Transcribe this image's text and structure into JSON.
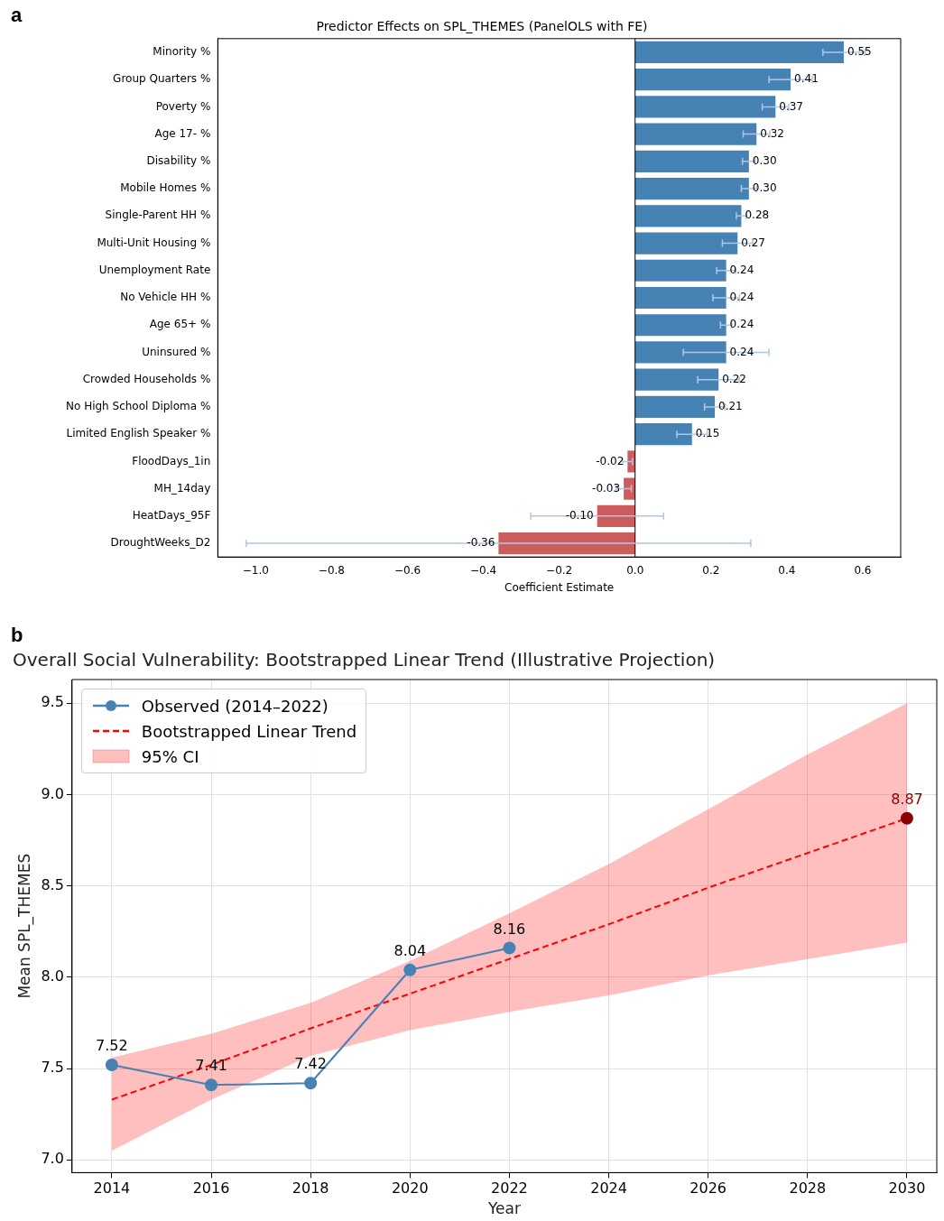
{
  "chart_data": [
    {
      "type": "bar",
      "orientation": "horizontal",
      "title": "Predictor Effects on SPL_THEMES (PanelOLS with FE)",
      "xlabel": "Coefficient Estimate",
      "annotations": [
        "a"
      ],
      "categories": [
        "Minority %",
        "Group Quarters %",
        "Poverty %",
        "Age 17- %",
        "Disability %",
        "Mobile Homes %",
        "Single-Parent HH %",
        "Multi-Unit Housing %",
        "Unemployment Rate",
        "No Vehicle HH %",
        "Age 65+ %",
        "Uninsured %",
        "Crowded Households %",
        "No High School Diploma %",
        "Limited English Speaker %",
        "FloodDays_1in",
        "MH_14day",
        "HeatDays_95F",
        "DroughtWeeks_D2"
      ],
      "values": [
        0.55,
        0.41,
        0.37,
        0.32,
        0.3,
        0.3,
        0.28,
        0.27,
        0.24,
        0.24,
        0.24,
        0.24,
        0.22,
        0.21,
        0.15,
        -0.02,
        -0.03,
        -0.1,
        -0.36
      ],
      "value_labels": [
        "0.55",
        "0.41",
        "0.37",
        "0.32",
        "0.30",
        "0.30",
        "0.28",
        "0.27",
        "0.24",
        "0.24",
        "0.24",
        "0.24",
        "0.22",
        "0.21",
        "0.15",
        "-0.02",
        "-0.03",
        "-0.10",
        "-0.36"
      ],
      "errors": [
        0.055,
        0.057,
        0.035,
        0.035,
        0.017,
        0.02,
        0.013,
        0.04,
        0.025,
        0.035,
        0.015,
        0.113,
        0.055,
        0.027,
        0.04,
        0.013,
        0.02,
        0.175,
        0.665
      ],
      "colors": [
        "#4682b4",
        "#4682b4",
        "#4682b4",
        "#4682b4",
        "#4682b4",
        "#4682b4",
        "#4682b4",
        "#4682b4",
        "#4682b4",
        "#4682b4",
        "#4682b4",
        "#4682b4",
        "#4682b4",
        "#4682b4",
        "#4682b4",
        "#cd5c5c",
        "#cd5c5c",
        "#cd5c5c",
        "#cd5c5c"
      ],
      "xlim": [
        -1.1,
        0.7
      ],
      "xticks": [
        {
          "value": -1.0,
          "label": "−1.0"
        },
        {
          "value": -0.8,
          "label": "−0.8"
        },
        {
          "value": -0.6,
          "label": "−0.6"
        },
        {
          "value": -0.4,
          "label": "−0.4"
        },
        {
          "value": -0.2,
          "label": "−0.2"
        },
        {
          "value": 0,
          "label": "0.0"
        },
        {
          "value": 0.2,
          "label": "0.2"
        },
        {
          "value": 0.4,
          "label": "0.4"
        },
        {
          "value": 0.6,
          "label": "0.6"
        }
      ],
      "ref_lines": [
        {
          "axis": "x",
          "value": 0,
          "color": "#000000"
        }
      ],
      "grid": false,
      "legend": false
    },
    {
      "type": "line",
      "title": "Overall Social Vulnerability: Bootstrapped Linear Trend (Illustrative Projection)",
      "xlabel": "Year",
      "ylabel": "Mean SPL_THEMES",
      "annotations": [
        "b",
        "95% CI"
      ],
      "series": [
        {
          "name": "Observed (2014–2022)",
          "type": "line",
          "color": "#4682b4",
          "marker": "circle",
          "line_style": "solid",
          "x": [
            2014,
            2016,
            2018,
            2020,
            2022
          ],
          "values": [
            7.52,
            7.41,
            7.42,
            8.04,
            8.16
          ],
          "value_labels": [
            "7.52",
            "7.41",
            "7.42",
            "8.04",
            "8.16"
          ]
        },
        {
          "name": "Bootstrapped Linear Trend",
          "type": "line",
          "color": "#ff0000",
          "marker": "none",
          "line_style": "dashed",
          "x": [
            2014,
            2016,
            2018,
            2020,
            2022,
            2024,
            2026,
            2028,
            2030
          ],
          "values": [
            7.33,
            7.52,
            7.72,
            7.91,
            8.1,
            8.29,
            8.49,
            8.68,
            8.87
          ],
          "lower": [
            7.05,
            7.33,
            7.57,
            7.71,
            7.81,
            7.9,
            8.01,
            8.1,
            8.19
          ],
          "upper": [
            7.56,
            7.69,
            7.86,
            8.09,
            8.35,
            8.62,
            8.92,
            9.22,
            9.5
          ]
        },
        {
          "type": "scatter",
          "color": "#8b0000",
          "marker": "circle",
          "x": [
            2030
          ],
          "values": [
            8.87
          ],
          "value_labels": [
            "8.87"
          ]
        }
      ],
      "xlim": [
        2013.2,
        2030.6
      ],
      "ylim": [
        6.93,
        9.63
      ],
      "xticks": [
        2014,
        2016,
        2018,
        2020,
        2022,
        2024,
        2026,
        2028,
        2030
      ],
      "yticks": [
        {
          "value": 7.0,
          "label": "7.0"
        },
        {
          "value": 7.5,
          "label": "7.5"
        },
        {
          "value": 8.0,
          "label": "8.0"
        },
        {
          "value": 8.5,
          "label": "8.5"
        },
        {
          "value": 9.0,
          "label": "9.0"
        },
        {
          "value": 9.5,
          "label": "9.5"
        }
      ],
      "grid": true,
      "legend": "top left"
    }
  ]
}
